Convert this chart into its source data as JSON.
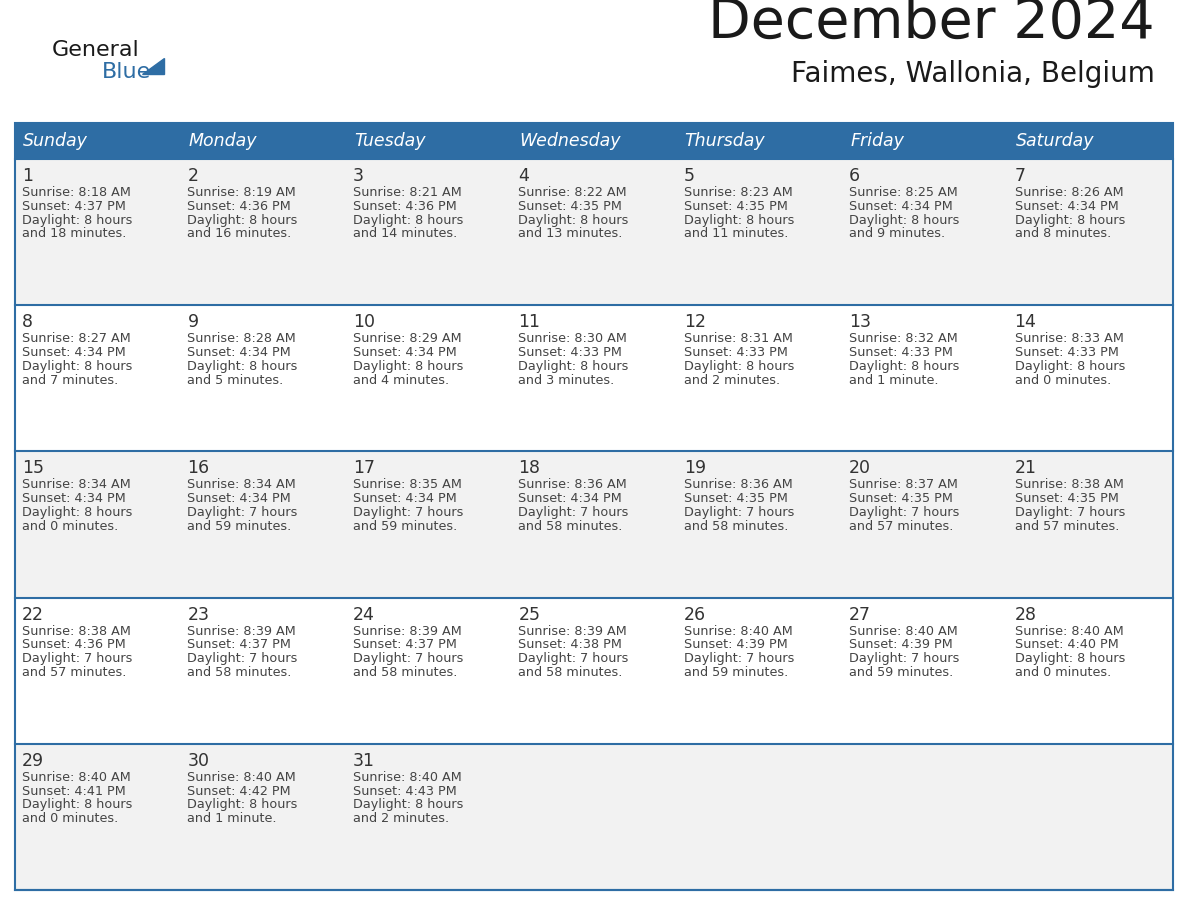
{
  "title": "December 2024",
  "subtitle": "Faimes, Wallonia, Belgium",
  "days_of_week": [
    "Sunday",
    "Monday",
    "Tuesday",
    "Wednesday",
    "Thursday",
    "Friday",
    "Saturday"
  ],
  "header_bg": "#2E6DA4",
  "header_text_color": "#FFFFFF",
  "cell_bg_odd": "#F2F2F2",
  "cell_bg_even": "#FFFFFF",
  "border_color": "#2E6DA4",
  "title_color": "#1a1a1a",
  "subtitle_color": "#1a1a1a",
  "day_number_color": "#333333",
  "cell_text_color": "#444444",
  "logo_text_color": "#1a1a1a",
  "logo_blue_color": "#2E6DA4",
  "calendar_data": [
    [
      {
        "day": 1,
        "sunrise": "8:18 AM",
        "sunset": "4:37 PM",
        "daylight_h": "8 hours",
        "daylight_m": "and 18 minutes."
      },
      {
        "day": 2,
        "sunrise": "8:19 AM",
        "sunset": "4:36 PM",
        "daylight_h": "8 hours",
        "daylight_m": "and 16 minutes."
      },
      {
        "day": 3,
        "sunrise": "8:21 AM",
        "sunset": "4:36 PM",
        "daylight_h": "8 hours",
        "daylight_m": "and 14 minutes."
      },
      {
        "day": 4,
        "sunrise": "8:22 AM",
        "sunset": "4:35 PM",
        "daylight_h": "8 hours",
        "daylight_m": "and 13 minutes."
      },
      {
        "day": 5,
        "sunrise": "8:23 AM",
        "sunset": "4:35 PM",
        "daylight_h": "8 hours",
        "daylight_m": "and 11 minutes."
      },
      {
        "day": 6,
        "sunrise": "8:25 AM",
        "sunset": "4:34 PM",
        "daylight_h": "8 hours",
        "daylight_m": "and 9 minutes."
      },
      {
        "day": 7,
        "sunrise": "8:26 AM",
        "sunset": "4:34 PM",
        "daylight_h": "8 hours",
        "daylight_m": "and 8 minutes."
      }
    ],
    [
      {
        "day": 8,
        "sunrise": "8:27 AM",
        "sunset": "4:34 PM",
        "daylight_h": "8 hours",
        "daylight_m": "and 7 minutes."
      },
      {
        "day": 9,
        "sunrise": "8:28 AM",
        "sunset": "4:34 PM",
        "daylight_h": "8 hours",
        "daylight_m": "and 5 minutes."
      },
      {
        "day": 10,
        "sunrise": "8:29 AM",
        "sunset": "4:34 PM",
        "daylight_h": "8 hours",
        "daylight_m": "and 4 minutes."
      },
      {
        "day": 11,
        "sunrise": "8:30 AM",
        "sunset": "4:33 PM",
        "daylight_h": "8 hours",
        "daylight_m": "and 3 minutes."
      },
      {
        "day": 12,
        "sunrise": "8:31 AM",
        "sunset": "4:33 PM",
        "daylight_h": "8 hours",
        "daylight_m": "and 2 minutes."
      },
      {
        "day": 13,
        "sunrise": "8:32 AM",
        "sunset": "4:33 PM",
        "daylight_h": "8 hours",
        "daylight_m": "and 1 minute."
      },
      {
        "day": 14,
        "sunrise": "8:33 AM",
        "sunset": "4:33 PM",
        "daylight_h": "8 hours",
        "daylight_m": "and 0 minutes."
      }
    ],
    [
      {
        "day": 15,
        "sunrise": "8:34 AM",
        "sunset": "4:34 PM",
        "daylight_h": "8 hours",
        "daylight_m": "and 0 minutes."
      },
      {
        "day": 16,
        "sunrise": "8:34 AM",
        "sunset": "4:34 PM",
        "daylight_h": "7 hours",
        "daylight_m": "and 59 minutes."
      },
      {
        "day": 17,
        "sunrise": "8:35 AM",
        "sunset": "4:34 PM",
        "daylight_h": "7 hours",
        "daylight_m": "and 59 minutes."
      },
      {
        "day": 18,
        "sunrise": "8:36 AM",
        "sunset": "4:34 PM",
        "daylight_h": "7 hours",
        "daylight_m": "and 58 minutes."
      },
      {
        "day": 19,
        "sunrise": "8:36 AM",
        "sunset": "4:35 PM",
        "daylight_h": "7 hours",
        "daylight_m": "and 58 minutes."
      },
      {
        "day": 20,
        "sunrise": "8:37 AM",
        "sunset": "4:35 PM",
        "daylight_h": "7 hours",
        "daylight_m": "and 57 minutes."
      },
      {
        "day": 21,
        "sunrise": "8:38 AM",
        "sunset": "4:35 PM",
        "daylight_h": "7 hours",
        "daylight_m": "and 57 minutes."
      }
    ],
    [
      {
        "day": 22,
        "sunrise": "8:38 AM",
        "sunset": "4:36 PM",
        "daylight_h": "7 hours",
        "daylight_m": "and 57 minutes."
      },
      {
        "day": 23,
        "sunrise": "8:39 AM",
        "sunset": "4:37 PM",
        "daylight_h": "7 hours",
        "daylight_m": "and 58 minutes."
      },
      {
        "day": 24,
        "sunrise": "8:39 AM",
        "sunset": "4:37 PM",
        "daylight_h": "7 hours",
        "daylight_m": "and 58 minutes."
      },
      {
        "day": 25,
        "sunrise": "8:39 AM",
        "sunset": "4:38 PM",
        "daylight_h": "7 hours",
        "daylight_m": "and 58 minutes."
      },
      {
        "day": 26,
        "sunrise": "8:40 AM",
        "sunset": "4:39 PM",
        "daylight_h": "7 hours",
        "daylight_m": "and 59 minutes."
      },
      {
        "day": 27,
        "sunrise": "8:40 AM",
        "sunset": "4:39 PM",
        "daylight_h": "7 hours",
        "daylight_m": "and 59 minutes."
      },
      {
        "day": 28,
        "sunrise": "8:40 AM",
        "sunset": "4:40 PM",
        "daylight_h": "8 hours",
        "daylight_m": "and 0 minutes."
      }
    ],
    [
      {
        "day": 29,
        "sunrise": "8:40 AM",
        "sunset": "4:41 PM",
        "daylight_h": "8 hours",
        "daylight_m": "and 0 minutes."
      },
      {
        "day": 30,
        "sunrise": "8:40 AM",
        "sunset": "4:42 PM",
        "daylight_h": "8 hours",
        "daylight_m": "and 1 minute."
      },
      {
        "day": 31,
        "sunrise": "8:40 AM",
        "sunset": "4:43 PM",
        "daylight_h": "8 hours",
        "daylight_m": "and 2 minutes."
      },
      null,
      null,
      null,
      null
    ]
  ]
}
